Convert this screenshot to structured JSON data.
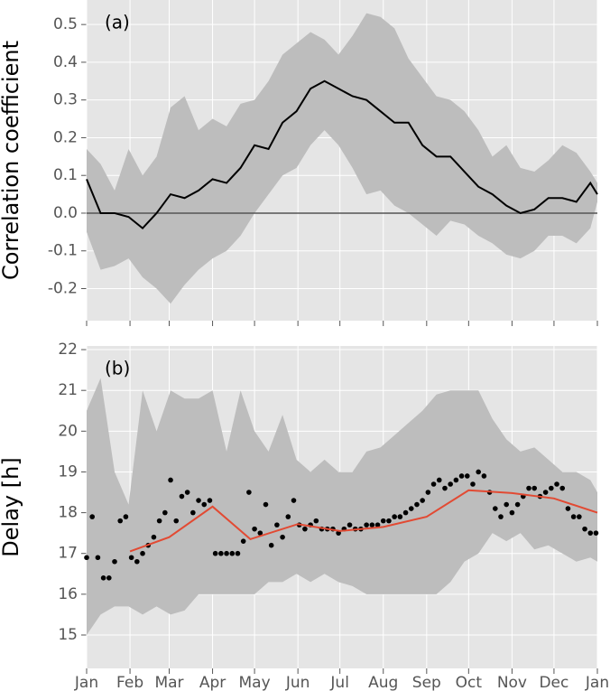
{
  "chart_data": [
    {
      "type": "line",
      "annotation": "(a)",
      "ylabel": "Correlation coefficient",
      "x": [
        0,
        10,
        20,
        30,
        40,
        50,
        60,
        70,
        80,
        90,
        100,
        110,
        120,
        130,
        140,
        150,
        160,
        170,
        180,
        190,
        200,
        210,
        220,
        230,
        240,
        250,
        260,
        270,
        280,
        290,
        300,
        310,
        320,
        330,
        340,
        350,
        360,
        365
      ],
      "series": [
        {
          "color": "#000000",
          "values": [
            0.09,
            0.0,
            0.0,
            -0.01,
            -0.04,
            0.0,
            0.05,
            0.04,
            0.06,
            0.09,
            0.08,
            0.12,
            0.18,
            0.17,
            0.24,
            0.27,
            0.33,
            0.35,
            0.33,
            0.31,
            0.3,
            0.27,
            0.24,
            0.24,
            0.18,
            0.15,
            0.15,
            0.11,
            0.07,
            0.05,
            0.02,
            0.0,
            0.01,
            0.04,
            0.04,
            0.03,
            0.08,
            0.05
          ]
        }
      ],
      "band": {
        "color": "#bdbdbd",
        "upper": [
          0.17,
          0.13,
          0.06,
          0.17,
          0.1,
          0.15,
          0.28,
          0.31,
          0.22,
          0.25,
          0.23,
          0.29,
          0.3,
          0.35,
          0.42,
          0.45,
          0.48,
          0.46,
          0.42,
          0.47,
          0.53,
          0.52,
          0.49,
          0.41,
          0.36,
          0.31,
          0.3,
          0.27,
          0.22,
          0.15,
          0.18,
          0.12,
          0.11,
          0.14,
          0.18,
          0.16,
          0.11,
          0.08
        ],
        "lower": [
          -0.05,
          -0.15,
          -0.14,
          -0.12,
          -0.17,
          -0.2,
          -0.24,
          -0.19,
          -0.15,
          -0.12,
          -0.1,
          -0.06,
          0.0,
          0.05,
          0.1,
          0.12,
          0.18,
          0.22,
          0.18,
          0.12,
          0.05,
          0.06,
          0.02,
          0.0,
          -0.03,
          -0.06,
          -0.02,
          -0.03,
          -0.06,
          -0.08,
          -0.11,
          -0.12,
          -0.1,
          -0.06,
          -0.06,
          -0.08,
          -0.04,
          0.03
        ]
      },
      "hline": 0,
      "hline_color": "#555555",
      "xlim": [
        0,
        365
      ],
      "xticks": [
        0,
        31,
        59,
        90,
        120,
        151,
        181,
        212,
        243,
        273,
        304,
        334,
        365
      ],
      "show_xtick_labels": false,
      "ylim": [
        -0.285,
        0.565
      ],
      "yticks": [
        -0.2,
        -0.1,
        {
          "value": 0,
          "label": "0.0"
        },
        0.1,
        0.2,
        0.3,
        0.4,
        0.5
      ],
      "grid": true
    },
    {
      "type": "scatter",
      "annotation": "(b)",
      "ylabel": "Delay [h]",
      "color": "#000000",
      "x": [
        0,
        4,
        8,
        12,
        16,
        20,
        24,
        28,
        32,
        36,
        40,
        44,
        48,
        52,
        56,
        60,
        64,
        68,
        72,
        76,
        80,
        84,
        88,
        92,
        96,
        100,
        104,
        108,
        112,
        116,
        120,
        124,
        128,
        132,
        136,
        140,
        144,
        148,
        152,
        156,
        160,
        164,
        168,
        172,
        176,
        180,
        184,
        188,
        192,
        196,
        200,
        204,
        208,
        212,
        216,
        220,
        224,
        228,
        232,
        236,
        240,
        244,
        248,
        252,
        256,
        260,
        264,
        268,
        272,
        276,
        280,
        284,
        288,
        292,
        296,
        300,
        304,
        308,
        312,
        316,
        320,
        324,
        328,
        332,
        336,
        340,
        344,
        348,
        352,
        356,
        360,
        364
      ],
      "values": [
        16.9,
        17.9,
        16.9,
        16.4,
        16.4,
        16.8,
        17.8,
        17.9,
        16.9,
        16.8,
        17.0,
        17.2,
        17.4,
        17.8,
        18.0,
        18.8,
        17.8,
        18.4,
        18.5,
        18.0,
        18.3,
        18.2,
        18.3,
        17.0,
        17.0,
        17.0,
        17.0,
        17.0,
        17.3,
        18.5,
        17.6,
        17.5,
        18.2,
        17.2,
        17.7,
        17.4,
        17.9,
        18.3,
        17.7,
        17.6,
        17.7,
        17.8,
        17.6,
        17.6,
        17.6,
        17.5,
        17.6,
        17.7,
        17.6,
        17.6,
        17.7,
        17.7,
        17.7,
        17.8,
        17.8,
        17.9,
        17.9,
        18.0,
        18.1,
        18.2,
        18.3,
        18.5,
        18.7,
        18.8,
        18.6,
        18.7,
        18.8,
        18.9,
        18.9,
        18.7,
        19.0,
        18.9,
        18.5,
        18.1,
        17.9,
        18.2,
        18.0,
        18.2,
        18.4,
        18.6,
        18.6,
        18.4,
        18.5,
        18.6,
        18.7,
        18.6,
        18.1,
        17.9,
        17.9,
        17.6,
        17.5,
        17.5
      ],
      "line": {
        "color": "#e24a33",
        "x": [
          31,
          59,
          90,
          117,
          151,
          181,
          212,
          243,
          273,
          304,
          334,
          365
        ],
        "values": [
          17.05,
          17.4,
          18.15,
          17.35,
          17.72,
          17.55,
          17.65,
          17.9,
          18.55,
          18.48,
          18.35,
          18.0
        ]
      },
      "band": {
        "color": "#bdbdbd",
        "x": [
          0,
          10,
          20,
          30,
          40,
          50,
          60,
          70,
          80,
          90,
          100,
          110,
          120,
          130,
          140,
          150,
          160,
          170,
          180,
          190,
          200,
          210,
          220,
          230,
          240,
          250,
          260,
          270,
          280,
          290,
          300,
          310,
          320,
          330,
          340,
          350,
          360,
          365
        ],
        "upper": [
          20.5,
          21.3,
          19.0,
          18.2,
          21.0,
          20.0,
          21.0,
          20.8,
          20.8,
          21.0,
          19.5,
          21.0,
          20.0,
          19.5,
          20.4,
          19.3,
          19.0,
          19.3,
          19.0,
          19.0,
          19.5,
          19.6,
          19.9,
          20.2,
          20.5,
          20.9,
          21.0,
          21.0,
          21.0,
          20.3,
          19.8,
          19.5,
          19.6,
          19.3,
          19.0,
          19.0,
          18.8,
          18.5
        ],
        "lower": [
          15.0,
          15.5,
          15.7,
          15.7,
          15.5,
          15.7,
          15.5,
          15.6,
          16.0,
          16.0,
          16.0,
          16.0,
          16.0,
          16.3,
          16.3,
          16.5,
          16.3,
          16.5,
          16.3,
          16.2,
          16.0,
          16.0,
          16.0,
          16.0,
          16.0,
          16.0,
          16.3,
          16.8,
          17.0,
          17.5,
          17.3,
          17.5,
          17.1,
          17.2,
          17.0,
          16.8,
          16.9,
          16.8
        ]
      },
      "xlim": [
        0,
        365
      ],
      "xticks": [
        {
          "value": 0,
          "label": "Jan"
        },
        {
          "value": 31,
          "label": "Feb"
        },
        {
          "value": 59,
          "label": "Mar"
        },
        {
          "value": 90,
          "label": "Apr"
        },
        {
          "value": 120,
          "label": "May"
        },
        {
          "value": 151,
          "label": "Jun"
        },
        {
          "value": 181,
          "label": "Jul"
        },
        {
          "value": 212,
          "label": "Aug"
        },
        {
          "value": 243,
          "label": "Sep"
        },
        {
          "value": 273,
          "label": "Oct"
        },
        {
          "value": 304,
          "label": "Nov"
        },
        {
          "value": 334,
          "label": "Dec"
        },
        {
          "value": 365,
          "label": "Jan"
        }
      ],
      "show_xtick_labels": true,
      "ylim": [
        14.18,
        22.09
      ],
      "yticks": [
        15,
        16,
        17,
        18,
        19,
        20,
        21,
        22
      ],
      "grid": true
    }
  ]
}
